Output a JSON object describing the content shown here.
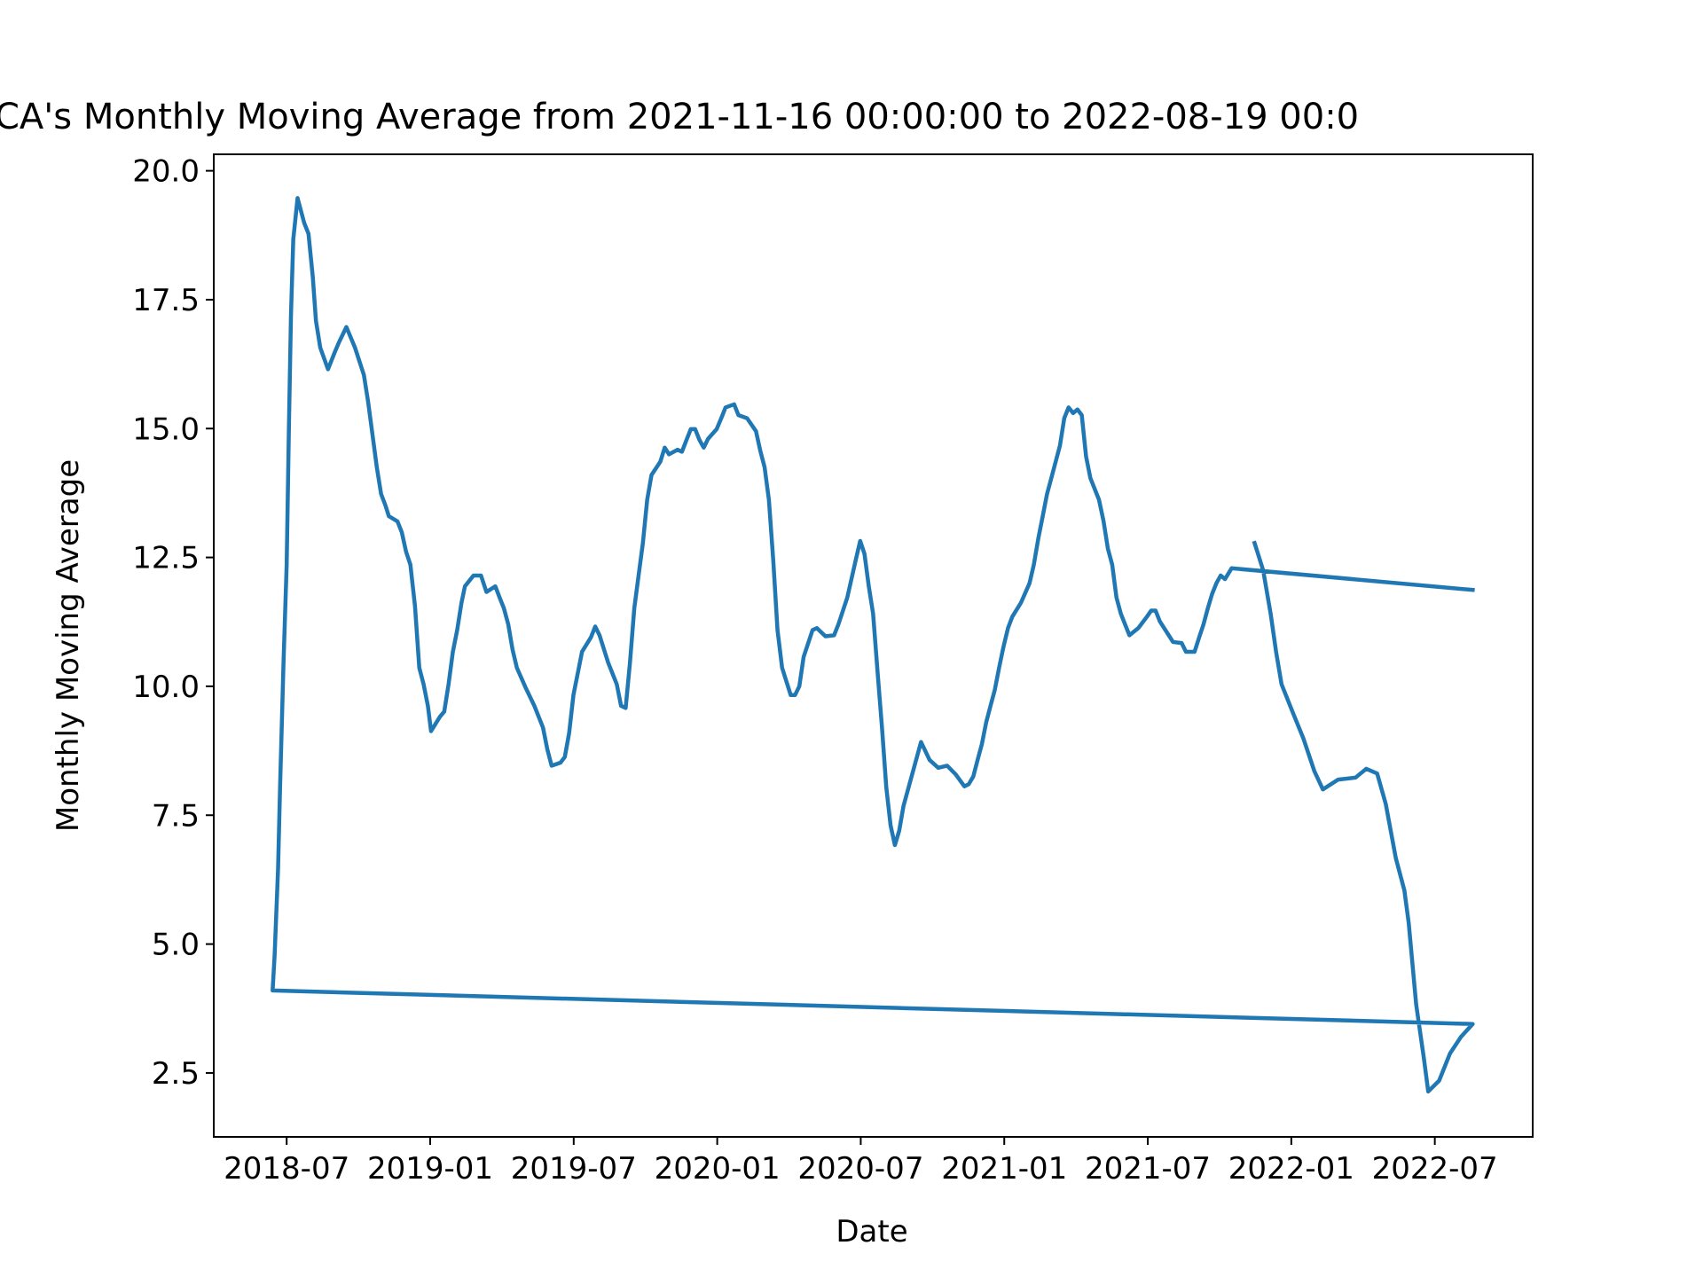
{
  "chart_data": {
    "type": "line",
    "title": "CA's Monthly Moving Average from 2021-11-16 00:00:00 to 2022-08-19 00:0",
    "x_label": "Date",
    "y_label": "Monthly Moving Average",
    "color": "#1f77b4",
    "xlim": [
      2018.246,
      2022.841
    ],
    "ylim": [
      1.26,
      20.32
    ],
    "xticks": [
      {
        "value": 2018.5,
        "label": "2018-07"
      },
      {
        "value": 2019.0,
        "label": "2019-01"
      },
      {
        "value": 2019.5,
        "label": "2019-07"
      },
      {
        "value": 2020.0,
        "label": "2020-01"
      },
      {
        "value": 2020.5,
        "label": "2020-07"
      },
      {
        "value": 2021.0,
        "label": "2021-01"
      },
      {
        "value": 2021.5,
        "label": "2021-07"
      },
      {
        "value": 2022.0,
        "label": "2022-01"
      },
      {
        "value": 2022.5,
        "label": "2022-07"
      }
    ],
    "yticks": [
      {
        "value": 2.5,
        "label": "2.5"
      },
      {
        "value": 5,
        "label": "5.0"
      },
      {
        "value": 7.5,
        "label": "7.5"
      },
      {
        "value": 10,
        "label": "10.0"
      },
      {
        "value": 12.5,
        "label": "12.5"
      },
      {
        "value": 15,
        "label": "15.0"
      },
      {
        "value": 17.5,
        "label": "17.5"
      },
      {
        "value": 20,
        "label": "20.0"
      }
    ],
    "x": [
      2021.872,
      2021.902,
      2021.928,
      2021.947,
      2021.966,
      2022.004,
      2022.042,
      2022.08,
      2022.11,
      2022.163,
      2022.224,
      2022.261,
      2022.299,
      2022.329,
      2022.364,
      2022.394,
      2022.409,
      2022.435,
      2022.462,
      2022.477,
      2022.515,
      2022.553,
      2022.591,
      2022.632,
      2018.451,
      2018.458,
      2018.47,
      2018.477,
      2018.489,
      2018.5,
      2018.508,
      2018.515,
      2018.523,
      2018.538,
      2018.561,
      2018.576,
      2018.591,
      2018.602,
      2018.617,
      2018.644,
      2018.666,
      2018.682,
      2018.708,
      2018.738,
      2018.769,
      2018.784,
      2018.799,
      2018.814,
      2018.829,
      2018.844,
      2018.856,
      2018.886,
      2018.901,
      2018.916,
      2018.931,
      2018.947,
      2018.962,
      2018.977,
      2018.992,
      2019.003,
      2019.034,
      2019.049,
      2019.064,
      2019.079,
      2019.094,
      2019.109,
      2019.121,
      2019.151,
      2019.177,
      2019.196,
      2019.227,
      2019.242,
      2019.257,
      2019.272,
      2019.287,
      2019.302,
      2019.332,
      2019.363,
      2019.393,
      2019.408,
      2019.423,
      2019.454,
      2019.469,
      2019.484,
      2019.499,
      2019.514,
      2019.529,
      2019.56,
      2019.575,
      2019.59,
      2019.62,
      2019.65,
      2019.665,
      2019.681,
      2019.696,
      2019.711,
      2019.726,
      2019.741,
      2019.756,
      2019.771,
      2019.802,
      2019.817,
      2019.832,
      2019.862,
      2019.877,
      2019.893,
      2019.908,
      2019.923,
      2019.938,
      2019.953,
      2019.968,
      2019.998,
      2020.014,
      2020.029,
      2020.059,
      2020.074,
      2020.104,
      2020.135,
      2020.15,
      2020.165,
      2020.18,
      2020.195,
      2020.21,
      2020.226,
      2020.256,
      2020.271,
      2020.286,
      2020.301,
      2020.332,
      2020.347,
      2020.377,
      2020.407,
      2020.422,
      2020.453,
      2020.483,
      2020.498,
      2020.513,
      2020.528,
      2020.543,
      2020.559,
      2020.574,
      2020.589,
      2020.604,
      2020.619,
      2020.634,
      2020.649,
      2020.68,
      2020.71,
      2020.74,
      2020.77,
      2020.801,
      2020.831,
      2020.861,
      2020.876,
      2020.892,
      2020.907,
      2020.922,
      2020.937,
      2020.952,
      2020.967,
      2020.982,
      2020.997,
      2021.013,
      2021.028,
      2021.058,
      2021.088,
      2021.103,
      2021.119,
      2021.134,
      2021.149,
      2021.164,
      2021.194,
      2021.209,
      2021.224,
      2021.24,
      2021.255,
      2021.27,
      2021.285,
      2021.3,
      2021.33,
      2021.346,
      2021.361,
      2021.376,
      2021.391,
      2021.406,
      2021.421,
      2021.436,
      2021.467,
      2021.497,
      2021.512,
      2021.527,
      2021.542,
      2021.573,
      2021.588,
      2021.618,
      2021.633,
      2021.663,
      2021.679,
      2021.694,
      2021.709,
      2021.724,
      2021.739,
      2021.754,
      2021.769,
      2021.792,
      2022.632
    ],
    "values": [
      12.78,
      12.25,
      11.41,
      10.67,
      10.04,
      9.51,
      8.99,
      8.36,
      8.0,
      8.19,
      8.23,
      8.4,
      8.31,
      7.72,
      6.67,
      6.04,
      5.41,
      3.83,
      2.78,
      2.14,
      2.35,
      2.88,
      3.2,
      3.45,
      4.1,
      4.78,
      6.46,
      8.04,
      10.46,
      12.36,
      15.09,
      17.2,
      18.67,
      19.47,
      18.99,
      18.78,
      17.94,
      17.09,
      16.57,
      16.15,
      16.46,
      16.67,
      16.97,
      16.57,
      16.04,
      15.51,
      14.88,
      14.25,
      13.73,
      13.51,
      13.3,
      13.2,
      12.99,
      12.61,
      12.36,
      11.56,
      10.36,
      10.04,
      9.62,
      9.13,
      9.41,
      9.51,
      10.04,
      10.67,
      11.09,
      11.62,
      11.94,
      12.15,
      12.15,
      11.83,
      11.94,
      11.72,
      11.51,
      11.2,
      10.71,
      10.36,
      9.98,
      9.62,
      9.2,
      8.78,
      8.46,
      8.52,
      8.63,
      9.09,
      9.83,
      10.25,
      10.67,
      10.95,
      11.16,
      10.99,
      10.46,
      10.04,
      9.62,
      9.58,
      10.46,
      11.51,
      12.15,
      12.78,
      13.62,
      14.1,
      14.36,
      14.63,
      14.5,
      14.59,
      14.55,
      14.78,
      14.99,
      14.99,
      14.78,
      14.63,
      14.8,
      14.99,
      15.2,
      15.41,
      15.47,
      15.26,
      15.2,
      14.95,
      14.57,
      14.25,
      13.62,
      12.46,
      11.09,
      10.36,
      9.83,
      9.83,
      10.0,
      10.57,
      11.09,
      11.13,
      10.97,
      10.99,
      11.2,
      11.72,
      12.46,
      12.82,
      12.57,
      11.94,
      11.41,
      10.25,
      9.2,
      8.04,
      7.3,
      6.92,
      7.2,
      7.68,
      8.31,
      8.92,
      8.57,
      8.42,
      8.46,
      8.29,
      8.06,
      8.1,
      8.25,
      8.57,
      8.88,
      9.3,
      9.62,
      9.93,
      10.36,
      10.76,
      11.13,
      11.35,
      11.62,
      12.0,
      12.36,
      12.88,
      13.3,
      13.73,
      14.04,
      14.67,
      15.2,
      15.41,
      15.3,
      15.37,
      15.26,
      14.46,
      14.04,
      13.62,
      13.2,
      12.67,
      12.36,
      11.72,
      11.41,
      11.2,
      10.99,
      11.13,
      11.35,
      11.47,
      11.47,
      11.26,
      10.99,
      10.86,
      10.84,
      10.67,
      10.67,
      10.95,
      11.2,
      11.51,
      11.79,
      12.0,
      12.15,
      12.08,
      12.29,
      11.87
    ]
  }
}
